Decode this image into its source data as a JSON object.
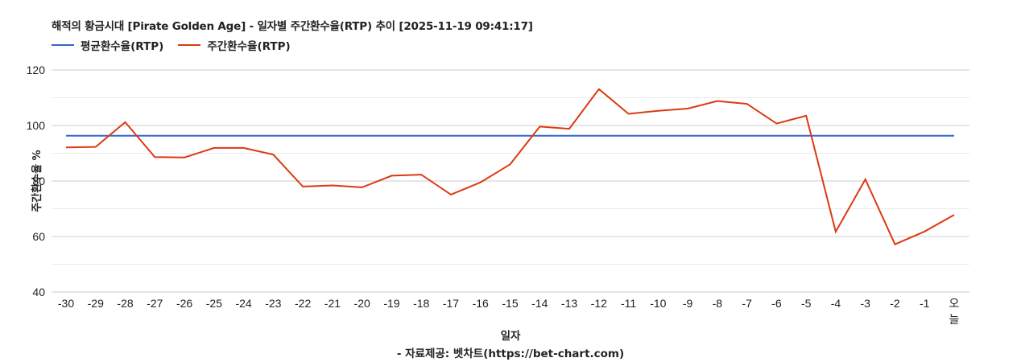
{
  "chart_data": {
    "type": "line",
    "title": "해적의 황금시대 [Pirate Golden Age] - 일자별 주간환수율(RTP) 추이 [2025-11-19 09:41:17]",
    "xlabel": "일자",
    "ylabel": "주간환수율 %",
    "ylim": [
      40,
      120
    ],
    "yticks": [
      40,
      60,
      80,
      100,
      120
    ],
    "grid": true,
    "legend_position": "top",
    "categories": [
      "-30",
      "-29",
      "-28",
      "-27",
      "-26",
      "-25",
      "-24",
      "-23",
      "-22",
      "-21",
      "-20",
      "-19",
      "-18",
      "-17",
      "-16",
      "-15",
      "-14",
      "-13",
      "-12",
      "-11",
      "-10",
      "-9",
      "-8",
      "-7",
      "-6",
      "-5",
      "-4",
      "-3",
      "-2",
      "-1",
      "오늘"
    ],
    "series": [
      {
        "name": "평균환수율(RTP)",
        "color": "#3366cc",
        "values": [
          96.3,
          96.3,
          96.3,
          96.3,
          96.3,
          96.3,
          96.3,
          96.3,
          96.3,
          96.3,
          96.3,
          96.3,
          96.3,
          96.3,
          96.3,
          96.3,
          96.3,
          96.3,
          96.3,
          96.3,
          96.3,
          96.3,
          96.3,
          96.3,
          96.3,
          96.3,
          96.3,
          96.3,
          96.3,
          96.3,
          96.3
        ]
      },
      {
        "name": "주간환수율(RTP)",
        "color": "#dc3912",
        "values": [
          92.1,
          92.3,
          101.2,
          88.6,
          88.5,
          91.9,
          91.9,
          89.5,
          78.0,
          78.4,
          77.7,
          81.9,
          82.3,
          75.1,
          79.5,
          86.0,
          99.6,
          98.8,
          113.1,
          104.2,
          105.3,
          106.1,
          108.8,
          107.8,
          100.7,
          103.5,
          61.7,
          80.6,
          57.2,
          61.8,
          67.8
        ]
      }
    ],
    "source": "- 자료제공: 벳차트(https://bet-chart.com)"
  },
  "header": {
    "title": "해적의 황금시대 [Pirate Golden Age] - 일자별 주간환수율(RTP) 추이 [2025-11-19 09:41:17]"
  },
  "legend": [
    {
      "label": "평균환수율(RTP)",
      "color": "#3366cc"
    },
    {
      "label": "주간환수율(RTP)",
      "color": "#dc3912"
    }
  ],
  "axes": {
    "ylabel": "주간환수율 %",
    "xlabel": "일자"
  },
  "footer": {
    "credit": "- 자료제공: 벳차트(https://bet-chart.com)"
  }
}
